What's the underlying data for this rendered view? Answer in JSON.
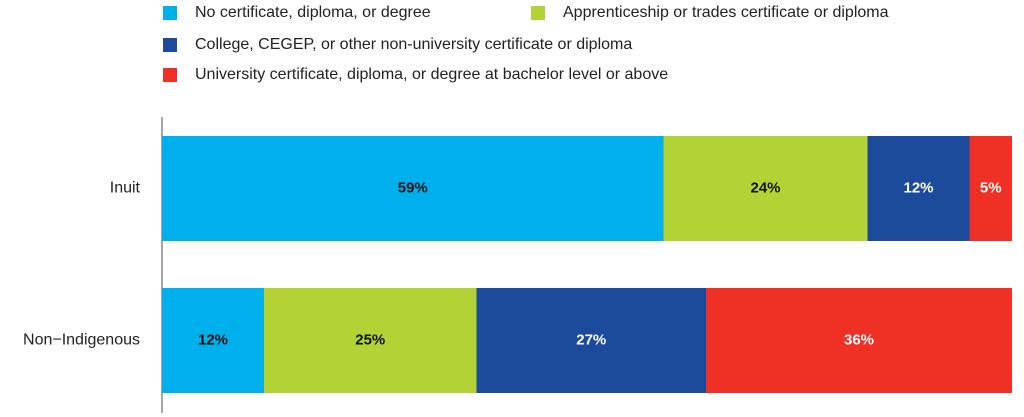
{
  "chart_data": {
    "type": "stacked-bar-horizontal",
    "categories": [
      "Inuit",
      "Non−Indigenous"
    ],
    "xlim": [
      0,
      100
    ],
    "series": [
      {
        "name": "No certificate, diploma, or degree",
        "color": "#00b0ec",
        "values": [
          59,
          12
        ],
        "value_labels": [
          "59%",
          "12%"
        ]
      },
      {
        "name": "Apprenticeship or trades certificate or diploma",
        "color": "#b2d235",
        "values": [
          24,
          25
        ],
        "value_labels": [
          "24%",
          "25%"
        ]
      },
      {
        "name": "College, CEGEP, or other non-university certificate or diploma",
        "color": "#1c4b9c",
        "values": [
          12,
          27
        ],
        "value_labels": [
          "12%",
          "27%"
        ]
      },
      {
        "name": "University certificate, diploma, or degree at bachelor level or above",
        "color": "#ee3124",
        "values": [
          5,
          36
        ],
        "value_labels": [
          "5%",
          "36%"
        ]
      }
    ]
  }
}
